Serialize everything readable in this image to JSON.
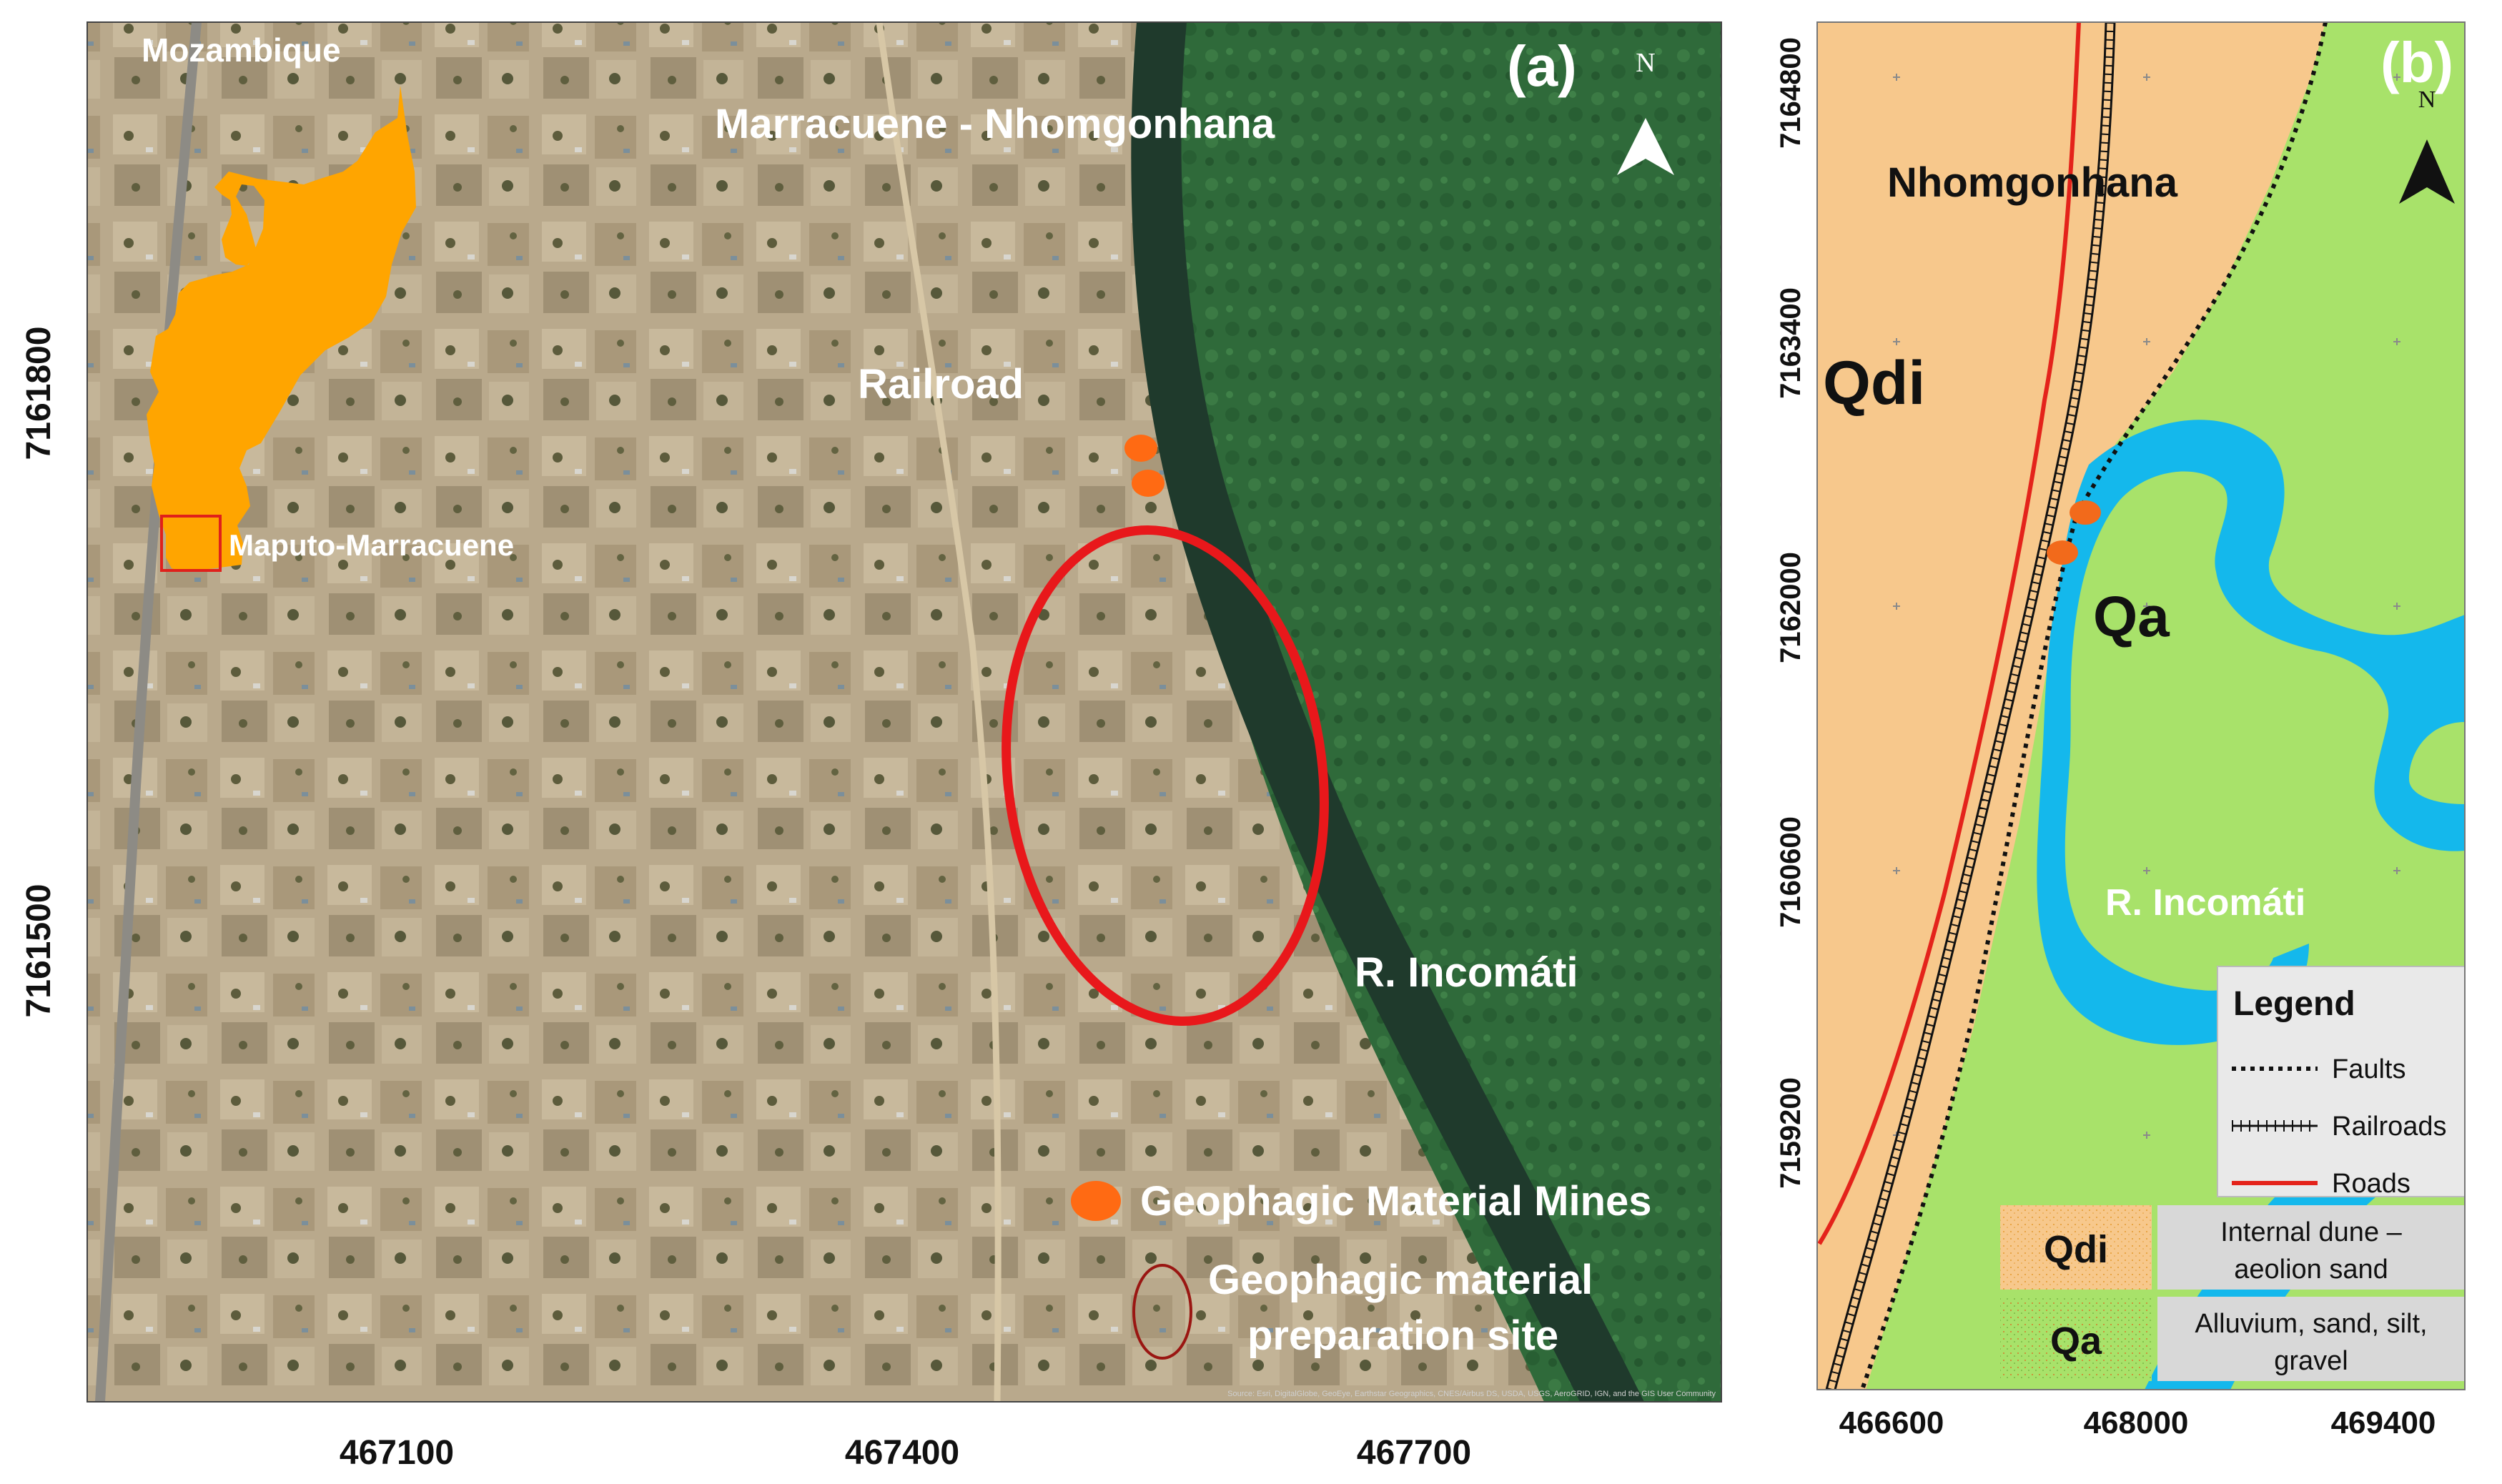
{
  "panel_a": {
    "letter": "(a)",
    "north": "N",
    "labels": {
      "country": "Mozambique",
      "area": "Maputo-Marracuene",
      "title": "Marracuene - Nhomgonhana",
      "railroad": "Railroad",
      "river": "R. Incomáti"
    },
    "legend": {
      "mines": "Geophagic Material Mines",
      "prep_line1": "Geophagic material",
      "prep_line2": "preparation site"
    },
    "x_ticks": [
      "467100",
      "467400",
      "467700"
    ],
    "y_ticks": [
      "7161800",
      "7161500"
    ],
    "attribution": "Source: Esri, DigitalGlobe, GeoEye, Earthstar Geographics, CNES/Airbus DS, USDA, USGS, AeroGRID, IGN, and the GIS User Community",
    "colors": {
      "country_fill": "#FFA500",
      "mine_marker": "#FF6A13",
      "prep_ellipse": "#E8181B",
      "river": "#1F3A2C",
      "vegetation": "#2F6A3A"
    }
  },
  "panel_b": {
    "letter": "(b)",
    "north": "N",
    "labels": {
      "place": "Nhomgonhana",
      "unit_qdi": "Qdi",
      "unit_qa": "Qa",
      "river": "R. Incomáti"
    },
    "legend": {
      "title": "Legend",
      "faults": "Faults",
      "railroads": "Railroads",
      "roads": "Roads",
      "qdi_code": "Qdi",
      "qdi_desc_1": "Internal dune –",
      "qdi_desc_2": "aeolion sand",
      "qa_code": "Qa",
      "qa_desc_1": "Alluvium, sand, silt,",
      "qa_desc_2": "gravel"
    },
    "x_ticks": [
      "466600",
      "468000",
      "469400"
    ],
    "y_ticks": [
      "7164800",
      "7163400",
      "7162000",
      "7160600",
      "7159200"
    ],
    "colors": {
      "qdi_fill": "#F7C88C",
      "qa_fill": "#A8E26A",
      "river": "#14B8EC",
      "road": "#E4231B",
      "mine_marker": "#F26A1B"
    }
  }
}
